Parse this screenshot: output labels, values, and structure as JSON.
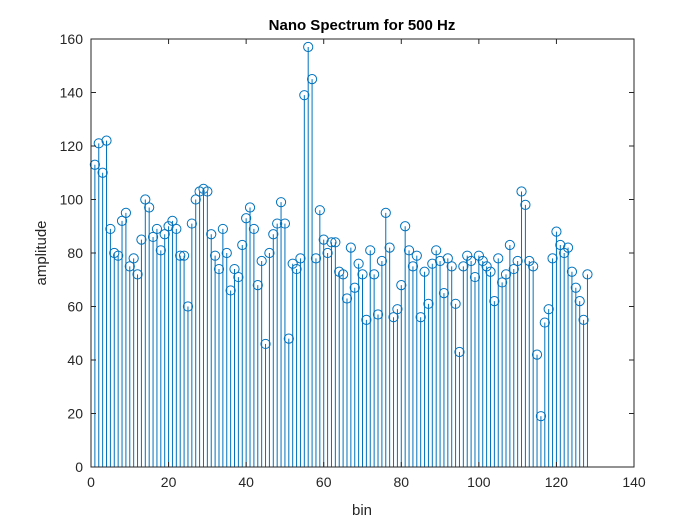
{
  "chart_data": {
    "type": "stem",
    "title": "Nano Spectrum for 500 Hz",
    "xlabel": "bin",
    "ylabel": "amplitude",
    "xlim": [
      0,
      140
    ],
    "ylim": [
      0,
      160
    ],
    "xticks": [
      0,
      20,
      40,
      60,
      80,
      100,
      120,
      140
    ],
    "yticks": [
      0,
      20,
      40,
      60,
      80,
      100,
      120,
      140,
      160
    ],
    "grid": false,
    "color": "#0072BD",
    "x": [
      1,
      2,
      3,
      4,
      5,
      6,
      7,
      8,
      9,
      10,
      11,
      12,
      13,
      14,
      15,
      16,
      17,
      18,
      19,
      20,
      21,
      22,
      23,
      24,
      25,
      26,
      27,
      28,
      29,
      30,
      31,
      32,
      33,
      34,
      35,
      36,
      37,
      38,
      39,
      40,
      41,
      42,
      43,
      44,
      45,
      46,
      47,
      48,
      49,
      50,
      51,
      52,
      53,
      54,
      55,
      56,
      57,
      58,
      59,
      60,
      61,
      62,
      63,
      64,
      65,
      66,
      67,
      68,
      69,
      70,
      71,
      72,
      73,
      74,
      75,
      76,
      77,
      78,
      79,
      80,
      81,
      82,
      83,
      84,
      85,
      86,
      87,
      88,
      89,
      90,
      91,
      92,
      93,
      94,
      95,
      96,
      97,
      98,
      99,
      100,
      101,
      102,
      103,
      104,
      105,
      106,
      107,
      108,
      109,
      110,
      111,
      112,
      113,
      114,
      115,
      116,
      117,
      118,
      119,
      120,
      121,
      122,
      123,
      124,
      125,
      126,
      127,
      128
    ],
    "y": [
      113,
      121,
      110,
      122,
      89,
      80,
      79,
      92,
      95,
      75,
      78,
      72,
      85,
      100,
      97,
      86,
      89,
      81,
      87,
      90,
      92,
      89,
      79,
      79,
      60,
      91,
      100,
      103,
      104,
      103,
      87,
      79,
      74,
      89,
      80,
      66,
      74,
      71,
      83,
      93,
      97,
      89,
      68,
      77,
      46,
      80,
      87,
      91,
      99,
      91,
      48,
      76,
      74,
      78,
      139,
      157,
      145,
      78,
      96,
      85,
      80,
      84,
      84,
      73,
      72,
      63,
      82,
      67,
      76,
      72,
      55,
      81,
      72,
      57,
      77,
      95,
      82,
      56,
      59,
      68,
      90,
      81,
      75,
      79,
      56,
      73,
      61,
      76,
      81,
      77,
      65,
      78,
      75,
      61,
      43,
      75,
      79,
      77,
      71,
      79,
      77,
      75,
      73,
      62,
      78,
      69,
      72,
      83,
      74,
      77,
      103,
      98,
      77,
      75,
      42,
      19,
      54,
      59,
      78,
      88,
      83,
      80,
      82,
      73,
      67,
      62,
      55,
      72
    ]
  }
}
